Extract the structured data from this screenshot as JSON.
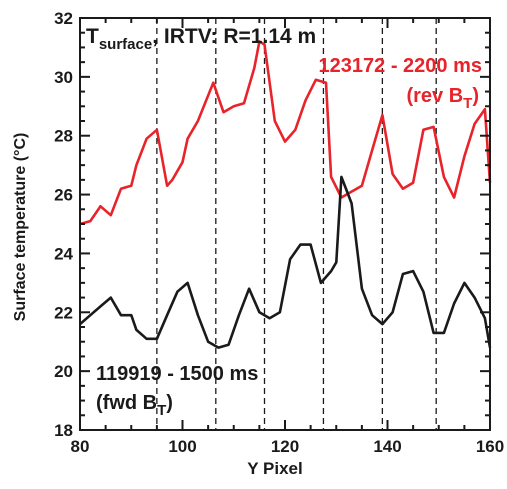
{
  "chart_data": {
    "type": "line",
    "xlabel": "Y Pixel",
    "ylabel": "Surface temperature (°C)",
    "xlim": [
      80,
      160
    ],
    "ylim": [
      18,
      32
    ],
    "x_ticks": [
      80,
      100,
      120,
      140,
      160
    ],
    "y_ticks": [
      18,
      20,
      22,
      24,
      26,
      28,
      30,
      32
    ],
    "grid": false,
    "vertical_dashed_lines_x": [
      95,
      106.5,
      116,
      127.5,
      139,
      149.5
    ],
    "annotations": {
      "title_main": "T",
      "title_sub": "surface",
      "title_rest": ", IRTV: R=1.14 m",
      "rev_label_line1": "123172 - 2200 ms",
      "rev_label_line2_main": "(rev B",
      "rev_label_line2_sub": "T",
      "rev_label_line2_end": ")",
      "fwd_label_line1": "119919 - 1500 ms",
      "fwd_label_line2_main": "(fwd B",
      "fwd_label_line2_sub": "T",
      "fwd_label_line2_end": ")"
    },
    "series": [
      {
        "name": "123172 - 2200 ms (rev BT)",
        "color": "#e8232a",
        "x": [
          80,
          82,
          84,
          86,
          88,
          90,
          91,
          93,
          95,
          97,
          98,
          100,
          101,
          103,
          106,
          108,
          110,
          112,
          114,
          115,
          116,
          118,
          120,
          122,
          124,
          126,
          128,
          129,
          131,
          133,
          135,
          137,
          139,
          141,
          143,
          145,
          147,
          149,
          151,
          153,
          155,
          157,
          159,
          160
        ],
        "y": [
          25.0,
          25.1,
          25.6,
          25.3,
          26.2,
          26.3,
          27.0,
          27.9,
          28.2,
          26.3,
          26.5,
          27.1,
          27.9,
          28.5,
          29.8,
          28.8,
          29.0,
          29.1,
          30.3,
          31.2,
          31.1,
          28.5,
          27.8,
          28.2,
          29.2,
          29.9,
          29.8,
          26.6,
          25.9,
          26.1,
          26.3,
          27.5,
          28.7,
          26.7,
          26.2,
          26.4,
          28.2,
          28.3,
          26.6,
          25.9,
          27.3,
          28.4,
          28.9,
          26.4
        ]
      },
      {
        "name": "119919 - 1500 ms (fwd BT)",
        "color": "#1a1a1a",
        "x": [
          80,
          82,
          84,
          86,
          88,
          90,
          91,
          93,
          95,
          97,
          99,
          101,
          103,
          105,
          107,
          109,
          111,
          113,
          115,
          117,
          119,
          121,
          123,
          125,
          127,
          129,
          130,
          131,
          133,
          135,
          137,
          139,
          141,
          143,
          145,
          147,
          149,
          151,
          153,
          155,
          157,
          159,
          160
        ],
        "y": [
          21.6,
          21.9,
          22.2,
          22.5,
          21.9,
          21.9,
          21.4,
          21.1,
          21.1,
          21.9,
          22.7,
          23.0,
          21.9,
          21.0,
          20.8,
          20.9,
          21.9,
          22.8,
          22.0,
          21.8,
          22.0,
          23.8,
          24.3,
          24.3,
          23.0,
          23.4,
          23.7,
          26.6,
          25.7,
          22.8,
          21.9,
          21.6,
          22.0,
          23.3,
          23.4,
          22.7,
          21.3,
          21.3,
          22.3,
          23.0,
          22.5,
          21.8,
          20.8
        ]
      }
    ]
  }
}
